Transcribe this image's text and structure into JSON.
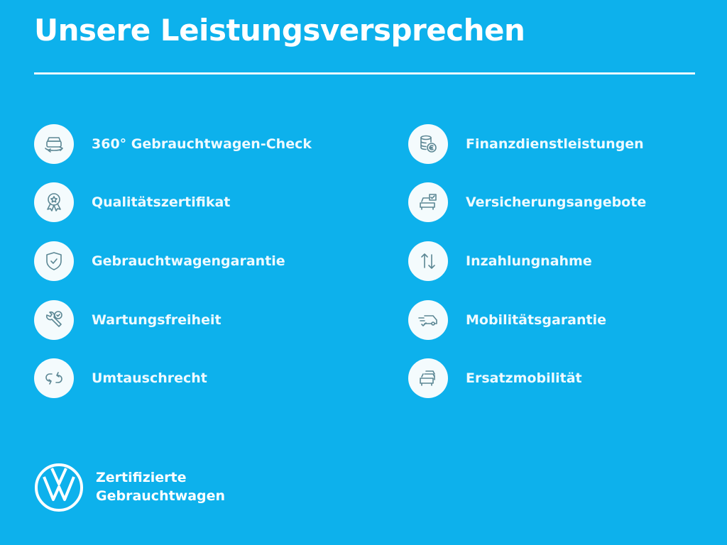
{
  "title": "Unsere Leistungsversprechen",
  "colors": {
    "background": "#0db1ec",
    "icon_stroke": "#5c8794",
    "icon_circle": "#f4fbfd",
    "text": "#ffffff"
  },
  "left_items": [
    {
      "label": "360° Gebrauchtwagen-Check",
      "icon": "car-check-icon"
    },
    {
      "label": "Qualitätszertifikat",
      "icon": "award-badge-icon"
    },
    {
      "label": "Gebrauchtwagengarantie",
      "icon": "shield-check-icon"
    },
    {
      "label": "Wartungsfreiheit",
      "icon": "wrench-check-icon"
    },
    {
      "label": "Umtauschrecht",
      "icon": "exchange-arrows-icon"
    }
  ],
  "right_items": [
    {
      "label": "Finanzdienstleistungen",
      "icon": "coins-euro-icon"
    },
    {
      "label": "Versicherungsangebote",
      "icon": "car-insurance-icon"
    },
    {
      "label": "Inzahlungnahme",
      "icon": "up-down-arrows-icon"
    },
    {
      "label": "Mobilitätsgarantie",
      "icon": "van-speed-icon"
    },
    {
      "label": "Ersatzmobilität",
      "icon": "cars-stack-icon"
    }
  ],
  "brand": {
    "line1": "Zertifizierte",
    "line2": "Gebrauchtwagen",
    "logo": "VW"
  }
}
